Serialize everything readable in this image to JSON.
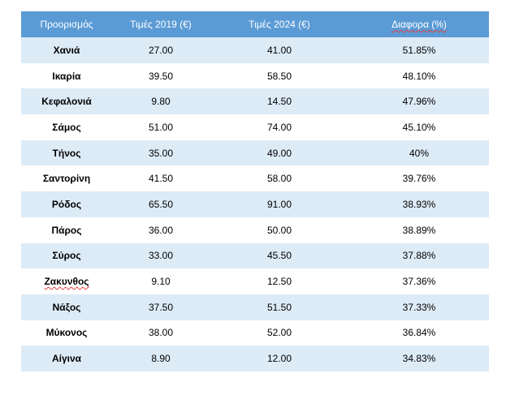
{
  "table": {
    "headers": [
      "Προορισμός",
      "Τιμές 2019 (€)",
      "Τιμές 2024 (€)",
      "Διαφορα (%)"
    ],
    "rows": [
      {
        "destination": "Χανιά",
        "price_2019": "27.00",
        "price_2024": "41.00",
        "difference": "51.85%"
      },
      {
        "destination": "Ικαρία",
        "price_2019": "39.50",
        "price_2024": "58.50",
        "difference": "48.10%"
      },
      {
        "destination": "Κεφαλονιά",
        "price_2019": "9.80",
        "price_2024": "14.50",
        "difference": "47.96%"
      },
      {
        "destination": "Σάμος",
        "price_2019": "51.00",
        "price_2024": "74.00",
        "difference": "45.10%"
      },
      {
        "destination": "Τήνος",
        "price_2019": "35.00",
        "price_2024": "49.00",
        "difference": "40%"
      },
      {
        "destination": "Σαντορίνη",
        "price_2019": "41.50",
        "price_2024": "58.00",
        "difference": "39.76%"
      },
      {
        "destination": "Ρόδος",
        "price_2019": "65.50",
        "price_2024": "91.00",
        "difference": "38.93%"
      },
      {
        "destination": "Πάρος",
        "price_2019": "36.00",
        "price_2024": "50.00",
        "difference": "38.89%"
      },
      {
        "destination": "Σύρος",
        "price_2019": "33.00",
        "price_2024": "45.50",
        "difference": "37.88%"
      },
      {
        "destination": "Ζακυνθος",
        "price_2019": "9.10",
        "price_2024": "12.50",
        "difference": "37.36%"
      },
      {
        "destination": "Νάξος",
        "price_2019": "37.50",
        "price_2024": "51.50",
        "difference": "37.33%"
      },
      {
        "destination": "Μύκονος",
        "price_2019": "38.00",
        "price_2024": "52.00",
        "difference": "36.84%"
      },
      {
        "destination": "Αίγινα",
        "price_2019": "8.90",
        "price_2024": "12.00",
        "difference": "34.83%"
      }
    ]
  },
  "colors": {
    "header_bg": "#5b9bd5",
    "band_bg": "#ddebf7",
    "spellcheck_underline": "#e04040"
  }
}
